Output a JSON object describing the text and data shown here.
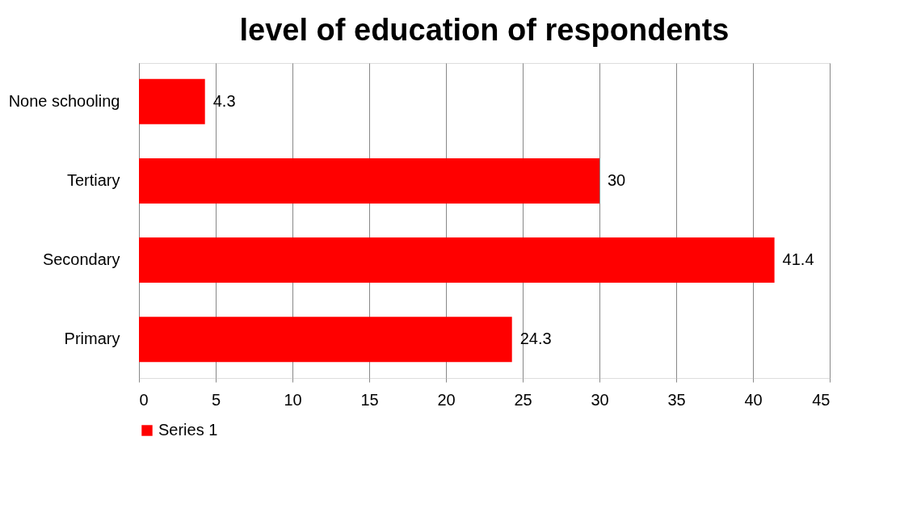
{
  "chart_data": {
    "type": "bar",
    "orientation": "horizontal",
    "title": "level of education of respondents",
    "categories": [
      "None schooling",
      "Tertiary",
      "Secondary",
      "Primary"
    ],
    "series": [
      {
        "name": "Series 1",
        "color": "#ff0000",
        "values": [
          4.3,
          30,
          41.4,
          24.3
        ]
      }
    ],
    "xlim": [
      0,
      45
    ],
    "xticks": [
      0,
      5,
      10,
      15,
      20,
      25,
      30,
      35,
      40,
      45
    ],
    "grid": "x",
    "legend": "bottom",
    "data_labels": true
  }
}
